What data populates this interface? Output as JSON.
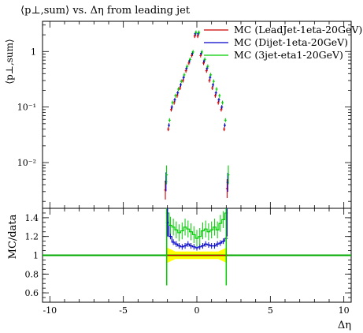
{
  "chart_data": [
    {
      "type": "scatter",
      "title": "⟨p⊥,sum⟩ vs. Δη from leading jet",
      "ylabel": "⟨p⊥,sum⟩",
      "xlabel": "",
      "xlim": [
        -10.5,
        10.5
      ],
      "ylim": [
        0.0015,
        3.5
      ],
      "yscale": "log",
      "yticks": [
        {
          "value": 0.01,
          "label": "10⁻²"
        },
        {
          "value": 0.1,
          "label": "10⁻¹"
        },
        {
          "value": 1,
          "label": "1"
        }
      ],
      "legend_position": "top-right",
      "x": [
        -2.1,
        -1.9,
        -1.7,
        -1.5,
        -1.3,
        -1.1,
        -0.9,
        -0.7,
        -0.5,
        -0.3,
        -0.1,
        0.1,
        0.3,
        0.5,
        0.7,
        0.9,
        1.1,
        1.3,
        1.5,
        1.7,
        1.9,
        2.1
      ],
      "series": [
        {
          "name": "MC (LeadJet-1eta-20GeV)",
          "color": "#cc0000",
          "values": [
            0.0032,
            0.04,
            0.09,
            0.12,
            0.16,
            0.22,
            0.3,
            0.45,
            0.62,
            0.85,
            1.9,
            1.9,
            0.85,
            0.62,
            0.45,
            0.3,
            0.22,
            0.16,
            0.12,
            0.09,
            0.04,
            0.0034
          ]
        },
        {
          "name": "MC (Dijet-1eta-20GeV)",
          "color": "#0000cc",
          "values": [
            0.0045,
            0.047,
            0.1,
            0.135,
            0.18,
            0.25,
            0.34,
            0.5,
            0.68,
            0.93,
            2.1,
            2.1,
            0.93,
            0.68,
            0.5,
            0.34,
            0.25,
            0.18,
            0.135,
            0.1,
            0.047,
            0.0044
          ]
        },
        {
          "name": "MC (3jet-eta1-20GeV)",
          "color": "#00cc00",
          "values": [
            0.006,
            0.058,
            0.12,
            0.16,
            0.21,
            0.29,
            0.38,
            0.54,
            0.72,
            0.98,
            2.2,
            2.2,
            0.98,
            0.72,
            0.54,
            0.38,
            0.29,
            0.21,
            0.16,
            0.12,
            0.058,
            0.006
          ]
        }
      ]
    },
    {
      "type": "line",
      "ylabel": "MC/data",
      "xlabel": "Δη",
      "xlim": [
        -10.5,
        10.5
      ],
      "ylim": [
        0.5,
        1.5
      ],
      "xticks": [
        -10,
        -5,
        0,
        5,
        10
      ],
      "yticks": [
        0.6,
        0.8,
        1,
        1.2,
        1.4
      ],
      "reference": {
        "value": 1,
        "color": "#000000"
      },
      "band": {
        "color": "#ffff00",
        "x": [
          -2.0,
          2.0
        ],
        "width": [
          0.08,
          0.04
        ]
      },
      "x": [
        -2.0,
        -1.8,
        -1.6,
        -1.4,
        -1.2,
        -1.0,
        -0.8,
        -0.6,
        -0.4,
        -0.2,
        0.0,
        0.2,
        0.4,
        0.6,
        0.8,
        1.0,
        1.2,
        1.4,
        1.6,
        1.8,
        2.0
      ],
      "series": [
        {
          "name": "MC (LeadJet-1eta-20GeV)",
          "color": "#cc0000",
          "values": [
            1.0,
            1.0,
            1.0,
            1.0,
            1.0,
            1.0,
            1.0,
            1.0,
            1.0,
            1.0,
            1.0,
            1.0,
            1.0,
            1.0,
            1.0,
            1.0,
            1.0,
            1.0,
            1.0,
            1.0,
            1.0
          ]
        },
        {
          "name": "MC (Dijet-1eta-20GeV)",
          "color": "#0000cc",
          "values": [
            1.35,
            1.2,
            1.14,
            1.12,
            1.1,
            1.09,
            1.1,
            1.12,
            1.1,
            1.09,
            1.08,
            1.09,
            1.1,
            1.12,
            1.11,
            1.1,
            1.1,
            1.12,
            1.13,
            1.15,
            1.18
          ]
        },
        {
          "name": "MC (3jet-eta1-20GeV)",
          "color": "#00cc00",
          "values": [
            1.45,
            1.32,
            1.3,
            1.27,
            1.24,
            1.26,
            1.3,
            1.28,
            1.25,
            1.22,
            1.18,
            1.2,
            1.26,
            1.28,
            1.25,
            1.27,
            1.3,
            1.27,
            1.34,
            1.38,
            1.45
          ]
        }
      ]
    }
  ]
}
